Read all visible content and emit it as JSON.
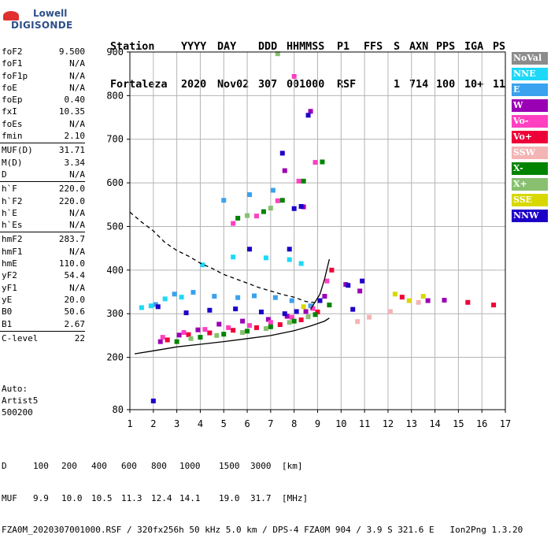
{
  "logo": {
    "line1": "Lowell",
    "line2": "DIGISONDE"
  },
  "header": {
    "columns": [
      "Station",
      "YYYY",
      "DAY",
      "DDD",
      "HHMMSS",
      "P1",
      "FFS",
      "S",
      "AXN",
      "PPS",
      "IGA",
      "PS"
    ],
    "values": [
      "Fortaleza",
      "2020",
      "Nov02",
      "307",
      "001000",
      "RSF",
      "1",
      "714",
      "100",
      "10+",
      "11"
    ]
  },
  "params": [
    [
      {
        "label": "foF2",
        "value": "9.500"
      },
      {
        "label": "foF1",
        "value": "N/A"
      },
      {
        "label": "foF1p",
        "value": "N/A"
      },
      {
        "label": "foE",
        "value": "N/A"
      },
      {
        "label": "foEp",
        "value": "0.40"
      },
      {
        "label": "fxI",
        "value": "10.35"
      },
      {
        "label": "foEs",
        "value": "N/A"
      },
      {
        "label": "fmin",
        "value": "2.10"
      }
    ],
    [
      {
        "label": "MUF(D)",
        "value": "31.71"
      },
      {
        "label": "M(D)",
        "value": "3.34"
      },
      {
        "label": "D",
        "value": "N/A"
      }
    ],
    [
      {
        "label": "h`F",
        "value": "220.0"
      },
      {
        "label": "h`F2",
        "value": "220.0"
      },
      {
        "label": "h`E",
        "value": "N/A"
      },
      {
        "label": "h`Es",
        "value": "N/A"
      }
    ],
    [
      {
        "label": "hmF2",
        "value": "283.7"
      },
      {
        "label": "hmF1",
        "value": "N/A"
      },
      {
        "label": "hmE",
        "value": "110.0"
      },
      {
        "label": "yF2",
        "value": "54.4"
      },
      {
        "label": "yF1",
        "value": "N/A"
      },
      {
        "label": "yE",
        "value": "20.0"
      },
      {
        "label": "B0",
        "value": "50.6"
      },
      {
        "label": "B1",
        "value": "2.67"
      }
    ],
    [
      {
        "label": "C-level",
        "value": "22"
      }
    ]
  ],
  "auto": {
    "line1": "Auto:",
    "line2": "Artist5",
    "line3": "500200"
  },
  "legend": [
    {
      "label": "NoVal",
      "color": "#8c8c8c"
    },
    {
      "label": "NNE",
      "color": "#1ed8f8"
    },
    {
      "label": "E",
      "color": "#3aa2ee"
    },
    {
      "label": "W",
      "color": "#9a00b4"
    },
    {
      "label": "Vo-",
      "color": "#ff40c0"
    },
    {
      "label": "Vo+",
      "color": "#ee0038"
    },
    {
      "label": "SSW",
      "color": "#f4b4b4"
    },
    {
      "label": "X-",
      "color": "#008400"
    },
    {
      "label": "X+",
      "color": "#88c070"
    },
    {
      "label": "SSE",
      "color": "#d8d800"
    },
    {
      "label": "NNW",
      "color": "#1c00c8"
    }
  ],
  "footer": {
    "d_label": "D",
    "d_values": [
      "100",
      "200",
      "400",
      "600",
      "800",
      "1000",
      "1500",
      "3000",
      "[km]"
    ],
    "muf_label": "MUF",
    "muf_values": [
      "9.9",
      "10.0",
      "10.5",
      "11.3",
      "12.4",
      "14.1",
      "19.0",
      "31.7",
      "[MHz]"
    ],
    "info": "FZA0M_2020307001000.RSF / 320fx256h 50 kHz 5.0 km / DPS-4 FZA0M 904 / 3.9 S 321.6 E   Ion2Png 1.3.20"
  },
  "chart_data": {
    "type": "scatter",
    "title": "",
    "xlabel": "",
    "ylabel": "",
    "xlim": [
      1,
      17
    ],
    "ylim": [
      80,
      900
    ],
    "xticks": [
      1,
      2,
      3,
      4,
      5,
      6,
      7,
      8,
      9,
      10,
      11,
      12,
      13,
      14,
      15,
      16,
      17
    ],
    "yticks": [
      80,
      200,
      300,
      400,
      500,
      600,
      700,
      800,
      900
    ],
    "grid": true,
    "series": [
      {
        "name": "NNE",
        "color": "#1ed8f8",
        "points": [
          [
            1.5,
            314
          ],
          [
            1.9,
            318
          ],
          [
            2.5,
            334
          ],
          [
            3.2,
            338
          ],
          [
            4.1,
            412
          ],
          [
            5.4,
            430
          ],
          [
            6.8,
            428
          ],
          [
            7.8,
            424
          ],
          [
            8.3,
            415
          ]
        ]
      },
      {
        "name": "E",
        "color": "#3aa2ee",
        "points": [
          [
            2.1,
            321
          ],
          [
            2.9,
            345
          ],
          [
            3.7,
            349
          ],
          [
            4.6,
            340
          ],
          [
            5.6,
            337
          ],
          [
            6.3,
            341
          ],
          [
            7.2,
            337
          ],
          [
            7.9,
            330
          ],
          [
            8.7,
            318
          ],
          [
            5.0,
            560
          ],
          [
            6.1,
            573
          ],
          [
            7.1,
            583
          ]
        ]
      },
      {
        "name": "W",
        "color": "#9a00b4",
        "points": [
          [
            2.3,
            236
          ],
          [
            3.1,
            251
          ],
          [
            3.9,
            263
          ],
          [
            4.8,
            276
          ],
          [
            5.8,
            283
          ],
          [
            6.9,
            287
          ],
          [
            7.7,
            294
          ],
          [
            8.5,
            305
          ],
          [
            9.3,
            340
          ],
          [
            10.2,
            367
          ],
          [
            10.8,
            352
          ],
          [
            13.7,
            330
          ],
          [
            14.4,
            331
          ],
          [
            7.6,
            628
          ],
          [
            8.4,
            545
          ],
          [
            8.7,
            764
          ]
        ]
      },
      {
        "name": "Vo-",
        "color": "#ff40c0",
        "points": [
          [
            2.4,
            246
          ],
          [
            3.3,
            257
          ],
          [
            4.2,
            264
          ],
          [
            5.2,
            268
          ],
          [
            6.1,
            273
          ],
          [
            7.0,
            280
          ],
          [
            7.9,
            292
          ],
          [
            8.8,
            312
          ],
          [
            9.4,
            375
          ],
          [
            5.4,
            507
          ],
          [
            6.4,
            524
          ],
          [
            7.3,
            559
          ],
          [
            8.2,
            604
          ],
          [
            8.9,
            647
          ],
          [
            8.0,
            844
          ]
        ]
      },
      {
        "name": "Vo+",
        "color": "#ee0038",
        "points": [
          [
            2.6,
            240
          ],
          [
            3.5,
            252
          ],
          [
            4.4,
            256
          ],
          [
            5.4,
            262
          ],
          [
            6.4,
            268
          ],
          [
            7.4,
            275
          ],
          [
            8.3,
            286
          ],
          [
            9.0,
            304
          ],
          [
            9.6,
            400
          ],
          [
            12.6,
            338
          ],
          [
            15.4,
            326
          ],
          [
            16.5,
            320
          ]
        ]
      },
      {
        "name": "SSW",
        "color": "#f4b4b4",
        "points": [
          [
            10.7,
            282
          ],
          [
            11.2,
            292
          ],
          [
            12.1,
            305
          ],
          [
            13.3,
            326
          ]
        ]
      },
      {
        "name": "X-",
        "color": "#008400",
        "points": [
          [
            3.0,
            236
          ],
          [
            4.0,
            246
          ],
          [
            5.0,
            253
          ],
          [
            6.0,
            260
          ],
          [
            7.0,
            270
          ],
          [
            8.0,
            283
          ],
          [
            8.9,
            298
          ],
          [
            9.5,
            320
          ],
          [
            5.6,
            519
          ],
          [
            6.7,
            534
          ],
          [
            7.5,
            560
          ],
          [
            8.4,
            604
          ],
          [
            9.2,
            648
          ]
        ]
      },
      {
        "name": "X+",
        "color": "#88c070",
        "points": [
          [
            3.6,
            243
          ],
          [
            4.7,
            250
          ],
          [
            5.8,
            257
          ],
          [
            6.8,
            266
          ],
          [
            7.8,
            280
          ],
          [
            8.6,
            293
          ],
          [
            6.0,
            525
          ],
          [
            7.0,
            542
          ],
          [
            7.3,
            896
          ]
        ]
      },
      {
        "name": "SSE",
        "color": "#d8d800",
        "points": [
          [
            8.4,
            316
          ],
          [
            12.3,
            345
          ],
          [
            12.9,
            330
          ],
          [
            13.5,
            340
          ]
        ]
      },
      {
        "name": "NNW",
        "color": "#1c00c8",
        "points": [
          [
            2.2,
            316
          ],
          [
            2.0,
            100
          ],
          [
            3.4,
            302
          ],
          [
            4.4,
            308
          ],
          [
            5.5,
            311
          ],
          [
            6.6,
            304
          ],
          [
            7.6,
            300
          ],
          [
            8.1,
            305
          ],
          [
            9.1,
            330
          ],
          [
            10.3,
            365
          ],
          [
            10.9,
            375
          ],
          [
            10.5,
            310
          ],
          [
            8.0,
            541
          ],
          [
            8.3,
            546
          ],
          [
            7.5,
            668
          ],
          [
            8.6,
            755
          ],
          [
            6.1,
            448
          ],
          [
            7.8,
            448
          ]
        ]
      }
    ],
    "curves": [
      {
        "style": "solid",
        "points": [
          [
            1.2,
            208
          ],
          [
            2.0,
            215
          ],
          [
            3.0,
            224
          ],
          [
            4.0,
            230
          ],
          [
            5.0,
            236
          ],
          [
            6.0,
            243
          ],
          [
            7.0,
            250
          ],
          [
            8.0,
            261
          ],
          [
            8.7,
            272
          ],
          [
            9.3,
            283
          ],
          [
            9.5,
            290
          ]
        ]
      },
      {
        "style": "dashed",
        "points": [
          [
            1.0,
            533
          ],
          [
            1.5,
            510
          ],
          [
            2.0,
            490
          ],
          [
            2.5,
            463
          ],
          [
            3.0,
            445
          ],
          [
            3.5,
            432
          ],
          [
            4.0,
            416
          ],
          [
            4.5,
            404
          ],
          [
            5.0,
            390
          ],
          [
            5.5,
            380
          ],
          [
            6.0,
            370
          ],
          [
            6.5,
            360
          ],
          [
            7.0,
            352
          ],
          [
            7.5,
            344
          ],
          [
            8.0,
            338
          ],
          [
            8.5,
            328
          ],
          [
            9.0,
            325
          ]
        ]
      },
      {
        "style": "solid",
        "points": [
          [
            8.7,
            310
          ],
          [
            9.1,
            345
          ],
          [
            9.3,
            380
          ],
          [
            9.5,
            425
          ]
        ]
      }
    ]
  }
}
